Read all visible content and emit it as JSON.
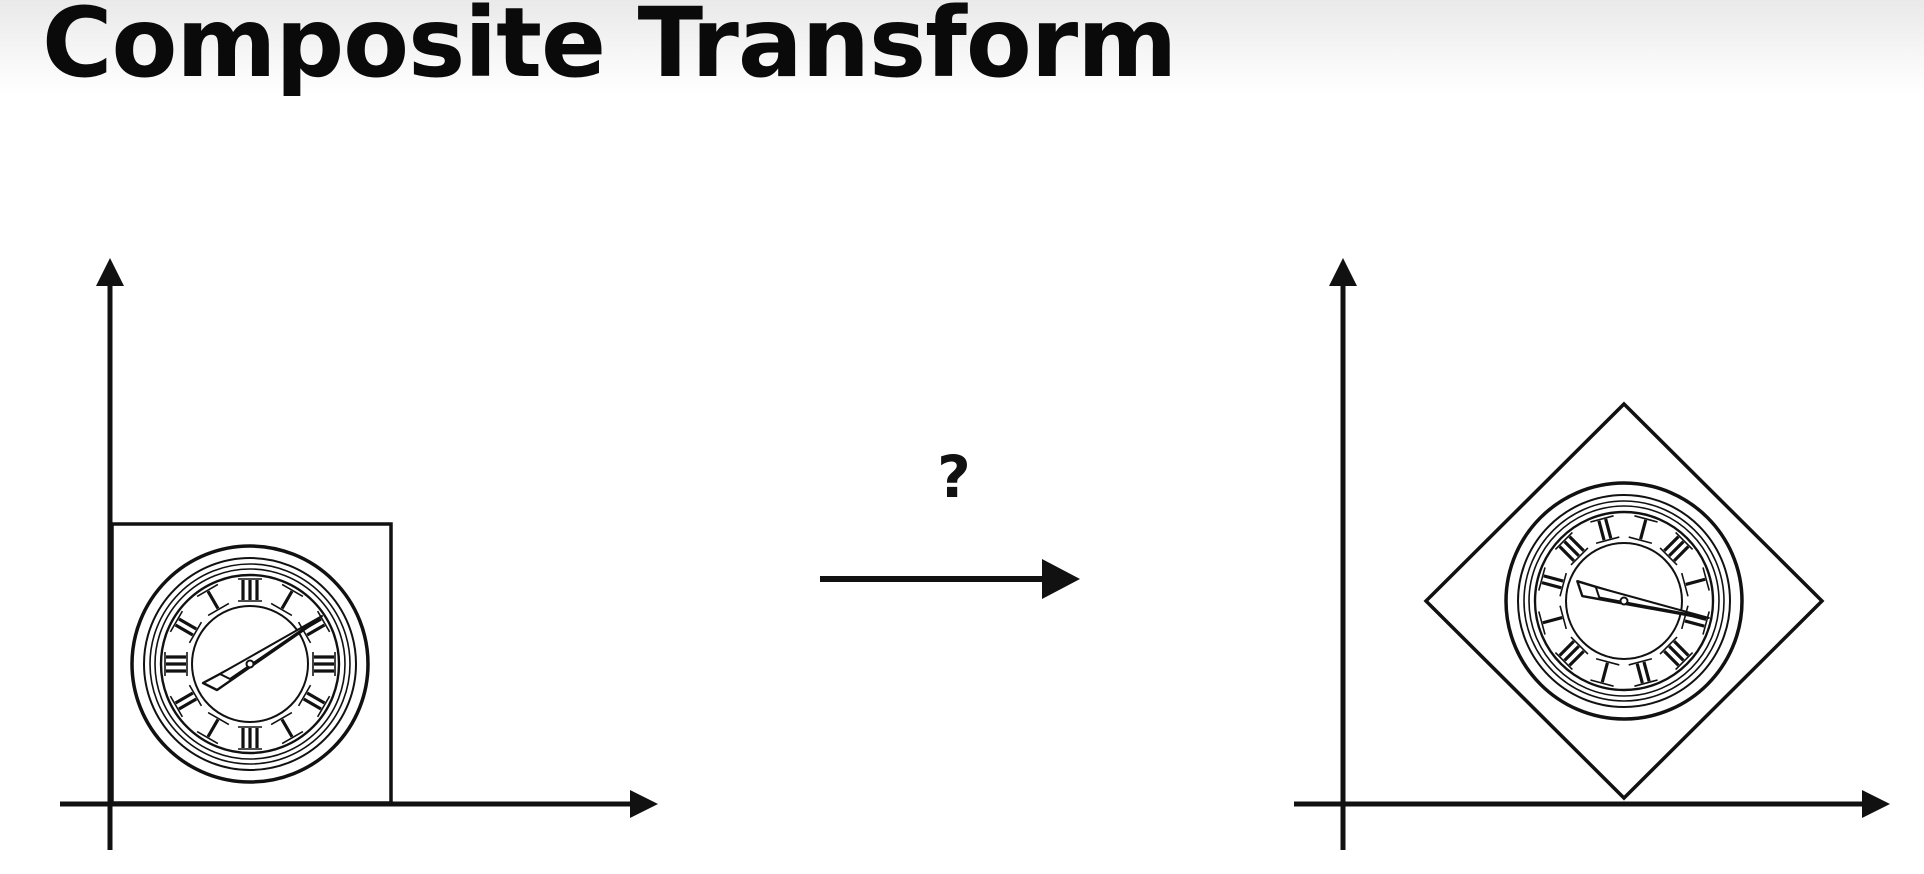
{
  "slide": {
    "title": "Composite Transform",
    "question": "?"
  },
  "icons": {
    "left": "clock-icon",
    "right": "clock-icon-rotated",
    "arrow": "arrow-right-icon"
  },
  "colors": {
    "ink": "#111111",
    "background": "#ffffff"
  }
}
